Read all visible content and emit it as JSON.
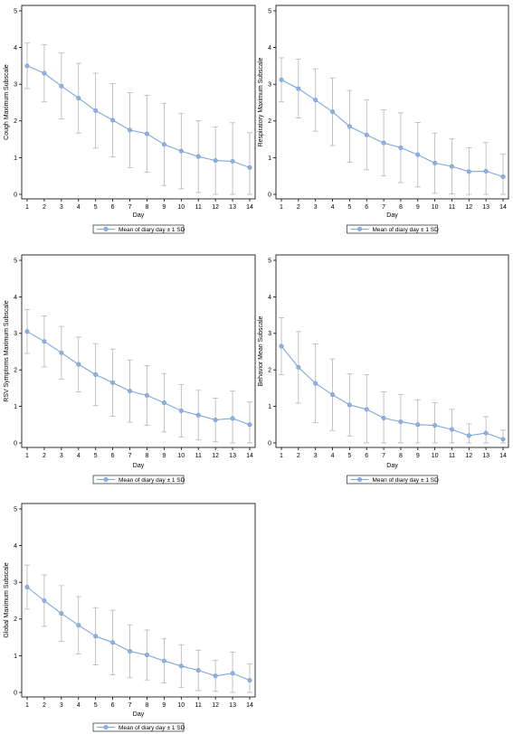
{
  "chart_data": [
    {
      "type": "line",
      "ylabel": "Cough Maximum Subscale",
      "xlabel": "Day",
      "x": [
        1,
        2,
        3,
        4,
        5,
        6,
        7,
        8,
        9,
        10,
        11,
        12,
        13,
        14
      ],
      "ylim": [
        0,
        5
      ],
      "yticks": [
        0,
        1,
        2,
        3,
        4,
        5
      ],
      "series": [
        {
          "name": "Mean of diary day ± 1 SD",
          "values": [
            3.5,
            3.3,
            2.95,
            2.62,
            2.28,
            2.02,
            1.75,
            1.65,
            1.36,
            1.18,
            1.03,
            0.92,
            0.9,
            0.73
          ],
          "sd": [
            0.62,
            0.78,
            0.9,
            0.95,
            1.02,
            1.0,
            1.02,
            1.05,
            1.12,
            1.03,
            0.98,
            0.92,
            1.05,
            0.95
          ]
        }
      ],
      "legend": "bottom"
    },
    {
      "type": "line",
      "ylabel": "Respiratory Maximum Subscale",
      "xlabel": "Day",
      "x": [
        1,
        2,
        3,
        4,
        5,
        6,
        7,
        8,
        9,
        10,
        11,
        12,
        13,
        14
      ],
      "ylim": [
        0,
        5
      ],
      "yticks": [
        0,
        1,
        2,
        3,
        4,
        5
      ],
      "series": [
        {
          "name": "Mean of diary day ± 1 SD",
          "values": [
            3.12,
            2.88,
            2.57,
            2.25,
            1.85,
            1.62,
            1.4,
            1.27,
            1.08,
            0.85,
            0.76,
            0.62,
            0.63,
            0.48
          ],
          "sd": [
            0.6,
            0.8,
            0.85,
            0.92,
            0.98,
            0.95,
            0.9,
            0.95,
            0.88,
            0.82,
            0.75,
            0.65,
            0.78,
            0.62
          ]
        }
      ],
      "legend": "bottom"
    },
    {
      "type": "line",
      "ylabel": "RSV Symptoms Maximum Subscale",
      "xlabel": "Day",
      "x": [
        1,
        2,
        3,
        4,
        5,
        6,
        7,
        8,
        9,
        10,
        11,
        12,
        13,
        14
      ],
      "ylim": [
        0,
        5
      ],
      "yticks": [
        0,
        1,
        2,
        3,
        4,
        5
      ],
      "series": [
        {
          "name": "Mean of diary day ± 1 SD",
          "values": [
            3.05,
            2.78,
            2.47,
            2.15,
            1.87,
            1.65,
            1.42,
            1.3,
            1.1,
            0.88,
            0.76,
            0.63,
            0.67,
            0.5
          ],
          "sd": [
            0.6,
            0.7,
            0.72,
            0.75,
            0.85,
            0.92,
            0.85,
            0.82,
            0.8,
            0.72,
            0.68,
            0.6,
            0.75,
            0.62
          ]
        }
      ],
      "legend": "bottom"
    },
    {
      "type": "line",
      "ylabel": "Behavior Mean Subscale",
      "xlabel": "Day",
      "x": [
        1,
        2,
        3,
        4,
        5,
        6,
        7,
        8,
        9,
        10,
        11,
        12,
        13,
        14
      ],
      "ylim": [
        0,
        5
      ],
      "yticks": [
        0,
        1,
        2,
        3,
        4,
        5
      ],
      "series": [
        {
          "name": "Mean of diary day ± 1 SD",
          "values": [
            2.65,
            2.07,
            1.63,
            1.32,
            1.04,
            0.92,
            0.68,
            0.58,
            0.5,
            0.48,
            0.37,
            0.2,
            0.27,
            0.1
          ],
          "sd": [
            0.78,
            0.98,
            1.08,
            0.98,
            0.85,
            0.95,
            0.72,
            0.75,
            0.68,
            0.62,
            0.55,
            0.32,
            0.45,
            0.25
          ]
        }
      ],
      "legend": "bottom"
    },
    {
      "type": "line",
      "ylabel": "Global Maximum Subscale",
      "xlabel": "Day",
      "x": [
        1,
        2,
        3,
        4,
        5,
        6,
        7,
        8,
        9,
        10,
        11,
        12,
        13,
        14
      ],
      "ylim": [
        0,
        5
      ],
      "yticks": [
        0,
        1,
        2,
        3,
        4,
        5
      ],
      "series": [
        {
          "name": "Mean of diary day ± 1 SD",
          "values": [
            2.87,
            2.5,
            2.15,
            1.83,
            1.53,
            1.36,
            1.12,
            1.02,
            0.86,
            0.72,
            0.6,
            0.45,
            0.52,
            0.33
          ],
          "sd": [
            0.6,
            0.7,
            0.76,
            0.78,
            0.78,
            0.88,
            0.72,
            0.68,
            0.6,
            0.58,
            0.55,
            0.42,
            0.58,
            0.45
          ]
        }
      ],
      "legend": "bottom"
    }
  ]
}
